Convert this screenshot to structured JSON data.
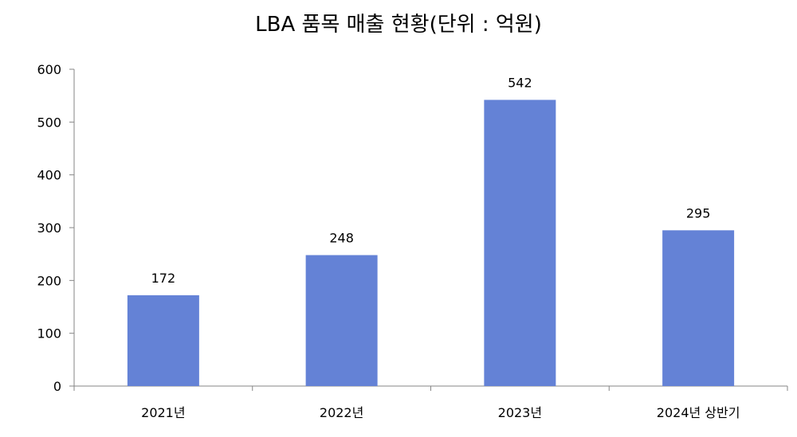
{
  "chart_data": {
    "type": "bar",
    "title": "LBA 품목 매출 현황(단위 : 억원)",
    "categories": [
      "2021년",
      "2022년",
      "2023년",
      "2024년 상반기"
    ],
    "values": [
      172,
      248,
      542,
      295
    ],
    "data_labels": [
      "172",
      "248",
      "542",
      "295"
    ],
    "y_ticks": [
      "0",
      "100",
      "200",
      "300",
      "400",
      "500",
      "600"
    ],
    "ylim": [
      0,
      600
    ],
    "grid": false,
    "legend": "none",
    "bar_color": "#6482D6",
    "axis_color": "#868686"
  }
}
